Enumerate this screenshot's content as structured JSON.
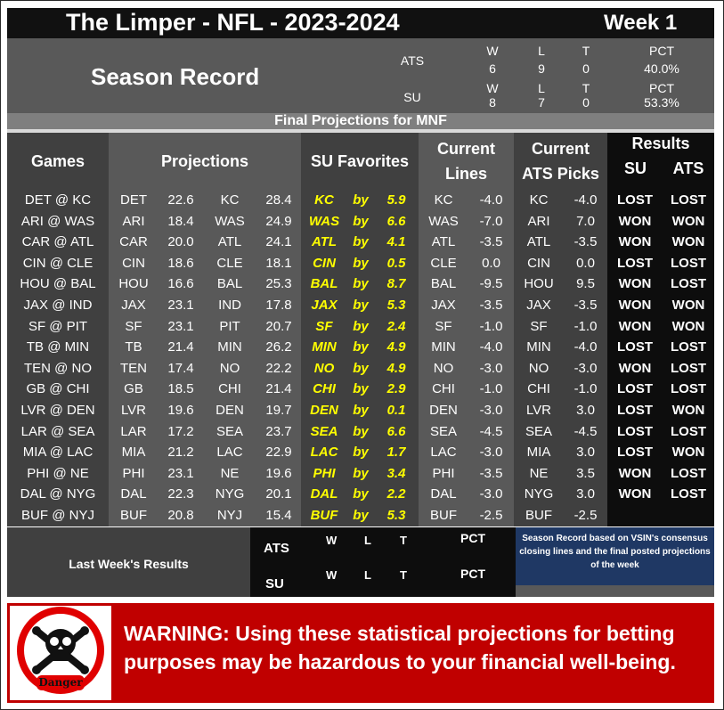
{
  "header": {
    "title": "The Limper - NFL - 2023-2024",
    "week": "Week 1"
  },
  "season_record": {
    "label": "Season Record",
    "ats": {
      "label": "ATS",
      "w_label": "W",
      "l_label": "L",
      "t_label": "T",
      "pct_label": "PCT",
      "w": "6",
      "l": "9",
      "t": "0",
      "pct": "40.0%"
    },
    "su": {
      "label": "SU",
      "w_label": "W",
      "l_label": "L",
      "t_label": "T",
      "pct_label": "PCT",
      "w": "8",
      "l": "7",
      "t": "0",
      "pct": "53.3%"
    }
  },
  "subheader": "Final Projections for MNF",
  "columns": {
    "games": "Games",
    "projections": "Projections",
    "su_favorites": "SU Favorites",
    "current_lines_1": "Current",
    "current_lines_2": "Lines",
    "current_picks_1": "Current",
    "current_picks_2": "ATS Picks",
    "results": "Results",
    "su": "SU",
    "ats": "ATS"
  },
  "games": [
    {
      "game": "DET @ KC",
      "away": "DET",
      "away_score": "22.6",
      "home": "KC",
      "home_score": "28.4",
      "fav": "KC",
      "by": "by",
      "margin": "5.9",
      "line_team": "KC",
      "line": "-4.0",
      "pick_team": "KC",
      "pick_line": "-4.0",
      "su": "LOST",
      "ats": "LOST"
    },
    {
      "game": "ARI @ WAS",
      "away": "ARI",
      "away_score": "18.4",
      "home": "WAS",
      "home_score": "24.9",
      "fav": "WAS",
      "by": "by",
      "margin": "6.6",
      "line_team": "WAS",
      "line": "-7.0",
      "pick_team": "ARI",
      "pick_line": "7.0",
      "su": "WON",
      "ats": "WON"
    },
    {
      "game": "CAR @ ATL",
      "away": "CAR",
      "away_score": "20.0",
      "home": "ATL",
      "home_score": "24.1",
      "fav": "ATL",
      "by": "by",
      "margin": "4.1",
      "line_team": "ATL",
      "line": "-3.5",
      "pick_team": "ATL",
      "pick_line": "-3.5",
      "su": "WON",
      "ats": "WON"
    },
    {
      "game": "CIN @ CLE",
      "away": "CIN",
      "away_score": "18.6",
      "home": "CLE",
      "home_score": "18.1",
      "fav": "CIN",
      "by": "by",
      "margin": "0.5",
      "line_team": "CLE",
      "line": "0.0",
      "pick_team": "CIN",
      "pick_line": "0.0",
      "su": "LOST",
      "ats": "LOST"
    },
    {
      "game": "HOU @ BAL",
      "away": "HOU",
      "away_score": "16.6",
      "home": "BAL",
      "home_score": "25.3",
      "fav": "BAL",
      "by": "by",
      "margin": "8.7",
      "line_team": "BAL",
      "line": "-9.5",
      "pick_team": "HOU",
      "pick_line": "9.5",
      "su": "WON",
      "ats": "LOST"
    },
    {
      "game": "JAX @ IND",
      "away": "JAX",
      "away_score": "23.1",
      "home": "IND",
      "home_score": "17.8",
      "fav": "JAX",
      "by": "by",
      "margin": "5.3",
      "line_team": "JAX",
      "line": "-3.5",
      "pick_team": "JAX",
      "pick_line": "-3.5",
      "su": "WON",
      "ats": "WON"
    },
    {
      "game": "SF @ PIT",
      "away": "SF",
      "away_score": "23.1",
      "home": "PIT",
      "home_score": "20.7",
      "fav": "SF",
      "by": "by",
      "margin": "2.4",
      "line_team": "SF",
      "line": "-1.0",
      "pick_team": "SF",
      "pick_line": "-1.0",
      "su": "WON",
      "ats": "WON"
    },
    {
      "game": "TB @ MIN",
      "away": "TB",
      "away_score": "21.4",
      "home": "MIN",
      "home_score": "26.2",
      "fav": "MIN",
      "by": "by",
      "margin": "4.9",
      "line_team": "MIN",
      "line": "-4.0",
      "pick_team": "MIN",
      "pick_line": "-4.0",
      "su": "LOST",
      "ats": "LOST"
    },
    {
      "game": "TEN @ NO",
      "away": "TEN",
      "away_score": "17.4",
      "home": "NO",
      "home_score": "22.2",
      "fav": "NO",
      "by": "by",
      "margin": "4.9",
      "line_team": "NO",
      "line": "-3.0",
      "pick_team": "NO",
      "pick_line": "-3.0",
      "su": "WON",
      "ats": "LOST"
    },
    {
      "game": "GB @ CHI",
      "away": "GB",
      "away_score": "18.5",
      "home": "CHI",
      "home_score": "21.4",
      "fav": "CHI",
      "by": "by",
      "margin": "2.9",
      "line_team": "CHI",
      "line": "-1.0",
      "pick_team": "CHI",
      "pick_line": "-1.0",
      "su": "LOST",
      "ats": "LOST"
    },
    {
      "game": "LVR @ DEN",
      "away": "LVR",
      "away_score": "19.6",
      "home": "DEN",
      "home_score": "19.7",
      "fav": "DEN",
      "by": "by",
      "margin": "0.1",
      "line_team": "DEN",
      "line": "-3.0",
      "pick_team": "LVR",
      "pick_line": "3.0",
      "su": "LOST",
      "ats": "WON"
    },
    {
      "game": "LAR @ SEA",
      "away": "LAR",
      "away_score": "17.2",
      "home": "SEA",
      "home_score": "23.7",
      "fav": "SEA",
      "by": "by",
      "margin": "6.6",
      "line_team": "SEA",
      "line": "-4.5",
      "pick_team": "SEA",
      "pick_line": "-4.5",
      "su": "LOST",
      "ats": "LOST"
    },
    {
      "game": "MIA @ LAC",
      "away": "MIA",
      "away_score": "21.2",
      "home": "LAC",
      "home_score": "22.9",
      "fav": "LAC",
      "by": "by",
      "margin": "1.7",
      "line_team": "LAC",
      "line": "-3.0",
      "pick_team": "MIA",
      "pick_line": "3.0",
      "su": "LOST",
      "ats": "WON"
    },
    {
      "game": "PHI @ NE",
      "away": "PHI",
      "away_score": "23.1",
      "home": "NE",
      "home_score": "19.6",
      "fav": "PHI",
      "by": "by",
      "margin": "3.4",
      "line_team": "PHI",
      "line": "-3.5",
      "pick_team": "NE",
      "pick_line": "3.5",
      "su": "WON",
      "ats": "LOST"
    },
    {
      "game": "DAL @ NYG",
      "away": "DAL",
      "away_score": "22.3",
      "home": "NYG",
      "home_score": "20.1",
      "fav": "DAL",
      "by": "by",
      "margin": "2.2",
      "line_team": "DAL",
      "line": "-3.0",
      "pick_team": "NYG",
      "pick_line": "3.0",
      "su": "WON",
      "ats": "LOST"
    },
    {
      "game": "BUF @ NYJ",
      "away": "BUF",
      "away_score": "20.8",
      "home": "NYJ",
      "home_score": "15.4",
      "fav": "BUF",
      "by": "by",
      "margin": "5.3",
      "line_team": "BUF",
      "line": "-2.5",
      "pick_team": "BUF",
      "pick_line": "-2.5",
      "su": "",
      "ats": ""
    }
  ],
  "last_week": {
    "label": "Last Week's Results",
    "ats_label": "ATS",
    "su_label": "SU",
    "w_label": "W",
    "l_label": "L",
    "t_label": "T",
    "pct_label": "PCT",
    "note": "Season Record based on VSIN's consensus closing lines and the final posted projections of the week"
  },
  "warning": {
    "text": "WARNING: Using these statistical projections for betting purposes may be hazardous to your financial well-being.",
    "danger_label": "Danger",
    "icon": "skull-crossbones-icon",
    "color": "#c00000"
  },
  "colors": {
    "favorite_text": "#ffff00",
    "dark_column": "#404040",
    "mid_column": "#595959",
    "results_column": "#0d0d0d",
    "note_background": "#1f3864"
  }
}
